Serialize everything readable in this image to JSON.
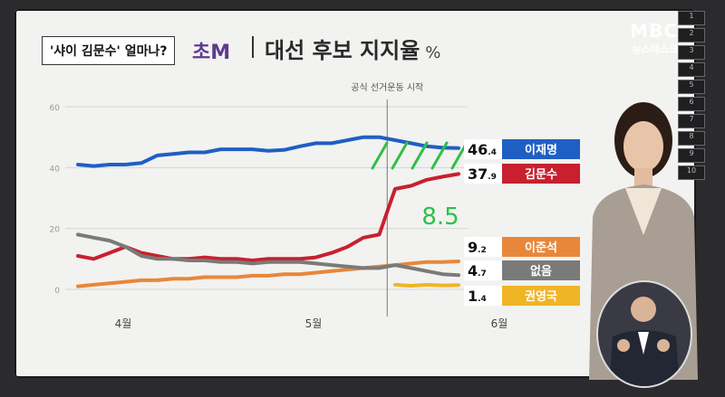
{
  "caption": "'샤이 김문수' 얼마나?",
  "logo_fragment": "초M",
  "title": "대선 후보 지지율",
  "title_unit": "%",
  "broadcaster": {
    "line1": "MBC",
    "line2": "뉴스데스크"
  },
  "sidebar_numbers": [
    "1",
    "2",
    "3",
    "4",
    "5",
    "6",
    "7",
    "8",
    "9",
    "10"
  ],
  "annotation_handwritten": "8.5",
  "colors": {
    "lee": "#1f5fc4",
    "kim": "#c8202e",
    "lee_jun": "#e8873a",
    "none": "#7a7a7a",
    "kwon": "#f0b525"
  },
  "chart_data": {
    "type": "line",
    "title": "대선 후보 지지율",
    "ylabel": "%",
    "ylim": [
      0,
      60
    ],
    "yticks": [
      "0",
      "20",
      "40",
      "60"
    ],
    "xticks": [
      "4월",
      "5월",
      "6월"
    ],
    "annotation": "공식 선거운동 시작",
    "series": [
      {
        "name": "이재명",
        "value_int": "46",
        "value_dec": ".4",
        "color": "#1f5fc4",
        "values": [
          41,
          40.5,
          41,
          41,
          41.5,
          44,
          44.5,
          45,
          45,
          46,
          46,
          46,
          45.5,
          45.8,
          47,
          48,
          48,
          49,
          50,
          50,
          49,
          48,
          47,
          46.5,
          46.4
        ]
      },
      {
        "name": "김문수",
        "value_int": "37",
        "value_dec": ".9",
        "color": "#c8202e",
        "values": [
          11,
          10,
          12,
          14,
          12,
          11,
          10,
          10,
          10.5,
          10,
          10,
          9.5,
          10,
          10,
          10,
          10.5,
          12,
          14,
          17,
          18,
          33,
          34,
          36,
          37,
          37.9
        ]
      },
      {
        "name": "이준석",
        "value_int": "9",
        "value_dec": ".2",
        "color": "#e8873a",
        "values": [
          1,
          1.5,
          2,
          2.5,
          3,
          3,
          3.5,
          3.5,
          4,
          4,
          4,
          4.5,
          4.5,
          5,
          5,
          5.5,
          6,
          6.5,
          7,
          7.5,
          8,
          8.5,
          9,
          9,
          9.2
        ]
      },
      {
        "name": "없음",
        "value_int": "4",
        "value_dec": ".7",
        "color": "#7a7a7a",
        "values": [
          18,
          17,
          16,
          14,
          11,
          10,
          10,
          9.5,
          9.5,
          9,
          9,
          8.5,
          9,
          9,
          9,
          8.5,
          8,
          7.5,
          7,
          7,
          8,
          7,
          6,
          5,
          4.7
        ]
      },
      {
        "name": "권영국",
        "value_int": "1",
        "value_dec": ".4",
        "color": "#f0b525",
        "values": [
          null,
          null,
          null,
          null,
          null,
          null,
          null,
          null,
          null,
          null,
          null,
          null,
          null,
          null,
          null,
          null,
          null,
          null,
          null,
          null,
          1.5,
          1.2,
          1.5,
          1.3,
          1.4
        ]
      }
    ]
  }
}
